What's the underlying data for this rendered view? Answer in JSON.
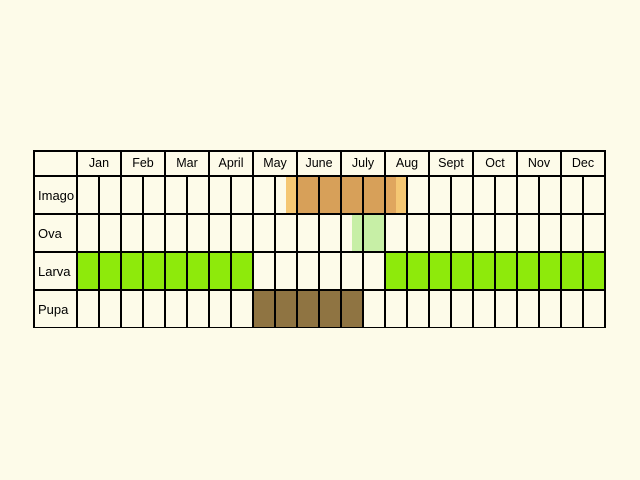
{
  "months": [
    "Jan",
    "Feb",
    "Mar",
    "April",
    "May",
    "June",
    "July",
    "Aug",
    "Sept",
    "Oct",
    "Nov",
    "Dec"
  ],
  "subdivisions_per_month": 2,
  "stages": [
    {
      "label": "Imago",
      "active_cells": [
        10,
        11,
        12,
        13,
        14
      ],
      "partial_cells": [
        {
          "cell": 9,
          "start": 0.5,
          "end": 1.0,
          "color": "#f5c773"
        },
        {
          "cell": 14,
          "start": 0.0,
          "end": 0.5,
          "color": "#e0a65e"
        },
        {
          "cell": 14,
          "start": 0.5,
          "end": 1.0,
          "color": "#f5c773"
        }
      ],
      "color": "#d7a059"
    },
    {
      "label": "Ova",
      "active_cells": [],
      "partial_cells": [
        {
          "cell": 12,
          "start": 0.5,
          "end": 1.0,
          "color": "#c7efa6"
        },
        {
          "cell": 13,
          "start": 0.0,
          "end": 1.0,
          "color": "#c7efa6"
        }
      ],
      "color": "#c7efa6"
    },
    {
      "label": "Larva",
      "active_cells": [
        0,
        1,
        2,
        3,
        4,
        5,
        6,
        7,
        14,
        15,
        16,
        17,
        18,
        19,
        20,
        21,
        22,
        23
      ],
      "partial_cells": [],
      "color": "#8eea0b"
    },
    {
      "label": "Pupa",
      "active_cells": [
        8,
        9,
        10,
        11,
        12
      ],
      "partial_cells": [],
      "color": "#8f7442"
    }
  ],
  "colors": {
    "background": "#fdfbe9",
    "cell_background": "#fdfbe9",
    "grid_line": "#000000"
  }
}
